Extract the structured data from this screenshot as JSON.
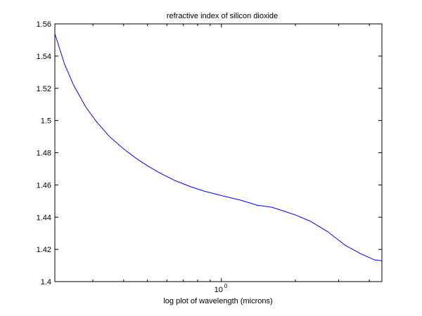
{
  "chart_data": {
    "type": "line",
    "title": "refractive index of silicon dioxide",
    "xlabel": "log plot of wavelength (microns)",
    "ylabel": "",
    "x_scale": "log",
    "xlim": [
      0.21,
      4.5
    ],
    "ylim": [
      1.4,
      1.56
    ],
    "x_tick_labels": [
      {
        "value": 1,
        "base": "10",
        "exponent": "0"
      }
    ],
    "y_ticks": [
      1.4,
      1.42,
      1.44,
      1.46,
      1.48,
      1.5,
      1.52,
      1.54,
      1.56
    ],
    "y_tick_labels": [
      "1.4",
      "1.42",
      "1.44",
      "1.46",
      "1.48",
      "1.5",
      "1.52",
      "1.54",
      "1.56"
    ],
    "grid": false,
    "line_color": "#0000ff",
    "series": [
      {
        "x": [
          0.21,
          0.23,
          0.25,
          0.28,
          0.31,
          0.35,
          0.4,
          0.45,
          0.5,
          0.55,
          0.6,
          0.65,
          0.75,
          0.85,
          1.0,
          1.2,
          1.4,
          1.6,
          1.8,
          2.0,
          2.3,
          2.7,
          3.2,
          3.7,
          4.2,
          4.5
        ],
        "y": [
          1.5539,
          1.535,
          1.5221,
          1.5086,
          1.4993,
          1.4901,
          1.4824,
          1.4765,
          1.4719,
          1.4682,
          1.4652,
          1.4626,
          1.4589,
          1.4562,
          1.4534,
          1.4505,
          1.4474,
          1.4462,
          1.4437,
          1.4414,
          1.4375,
          1.4311,
          1.4224,
          1.4172,
          1.4135,
          1.4129
        ]
      }
    ]
  }
}
